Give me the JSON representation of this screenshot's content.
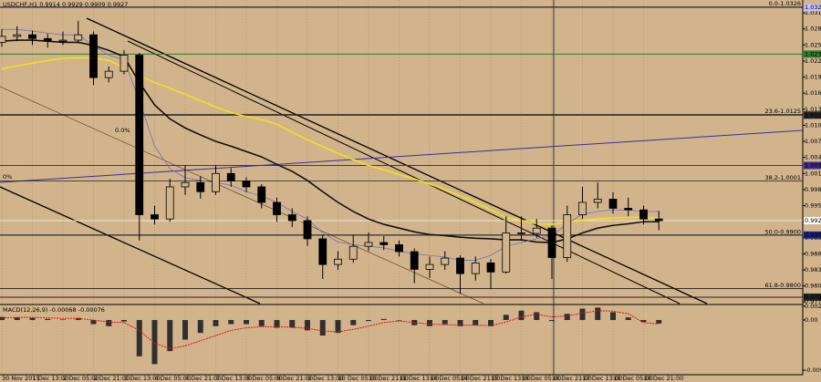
{
  "chart_data": [
    {
      "type": "candlestick",
      "title": "USDCHF,H1 0.9914 0.9929 0.9909 0.9927",
      "categories": [
        "30 Nov 2015",
        null,
        "1 Dec 13:00",
        null,
        "2 Dec 05:00",
        null,
        "2 Dec 21:00",
        null,
        "3 Dec 13:00",
        null,
        "4 Dec 05:00",
        null,
        "4 Dec 21:00",
        null,
        "7 Dec 13:00",
        null,
        "8 Dec 05:00",
        null,
        "8 Dec 21:00",
        null,
        "9 Dec 13:00",
        null,
        "10 Dec 05:00",
        null,
        "10 Dec 21:00",
        null,
        "11 Dec 13:00",
        null,
        "14 Dec 05:00",
        null,
        "14 Dec 21:00",
        null,
        "15 Dec 13:00",
        null,
        "16 Dec 05:00",
        null,
        "16 Dec 21:00",
        null,
        "17 Dec 13:00",
        null,
        "18 Dec 05:00",
        null,
        "18 Dec 21:00",
        null
      ],
      "open": [
        1.026,
        1.0271,
        1.0274,
        1.0267,
        1.0262,
        1.0264,
        1.0274,
        1.0194,
        1.0206,
        1.0236,
        0.9938,
        0.993,
        0.999,
        0.9998,
        0.9981,
        1.0015,
        1.0001,
        0.999,
        0.9961,
        0.9938,
        0.9927,
        0.9893,
        0.9845,
        0.9855,
        0.9879,
        0.9886,
        0.9882,
        0.9869,
        0.9836,
        0.9845,
        0.9857,
        0.9828,
        0.9848,
        0.9831,
        0.9904,
        0.9903,
        0.9913,
        0.9858,
        0.9938,
        0.9961,
        0.9967,
        0.995,
        0.9947,
        0.993
      ],
      "high": [
        1.0285,
        1.029,
        1.0282,
        1.0276,
        1.028,
        1.03,
        1.028,
        1.0215,
        1.0245,
        1.024,
        0.9955,
        1.0005,
        1.003,
        1.001,
        1.003,
        1.0025,
        1.0008,
        0.9995,
        0.997,
        0.995,
        0.9935,
        0.99,
        0.987,
        0.99,
        0.9905,
        0.9898,
        0.989,
        0.9875,
        0.986,
        0.987,
        0.9862,
        0.986,
        0.9855,
        0.9935,
        0.9935,
        0.993,
        0.9918,
        0.9955,
        0.999,
        0.9998,
        0.998,
        0.997,
        0.9955,
        0.9945
      ],
      "low": [
        1.0252,
        1.0262,
        1.0255,
        1.025,
        1.0255,
        1.0258,
        1.018,
        1.0185,
        1.02,
        0.989,
        0.992,
        0.9925,
        0.9975,
        0.9968,
        0.9975,
        0.999,
        0.998,
        0.995,
        0.9925,
        0.9915,
        0.988,
        0.9818,
        0.9835,
        0.9848,
        0.987,
        0.9872,
        0.986,
        0.981,
        0.982,
        0.9835,
        0.979,
        0.9815,
        0.98,
        0.9828,
        0.989,
        0.9895,
        0.9818,
        0.985,
        0.993,
        0.995,
        0.994,
        0.9935,
        0.992,
        0.9909
      ],
      "close": [
        1.0271,
        1.0274,
        1.0267,
        1.0262,
        1.0264,
        1.0274,
        1.0194,
        1.0206,
        1.0236,
        0.9938,
        0.993,
        0.999,
        0.9998,
        0.9981,
        1.0015,
        1.0001,
        0.999,
        0.9961,
        0.9938,
        0.9927,
        0.9893,
        0.9845,
        0.9855,
        0.9879,
        0.9886,
        0.9882,
        0.9869,
        0.9836,
        0.9845,
        0.9857,
        0.9828,
        0.9848,
        0.9831,
        0.9904,
        0.9903,
        0.9913,
        0.9858,
        0.9938,
        0.9961,
        0.9967,
        0.995,
        0.9947,
        0.993,
        0.9927
      ],
      "candle_color": "#000000",
      "series": [
        {
          "color": "#f0e020",
          "values": [
            1.0211,
            1.0216,
            1.0221,
            1.0226,
            1.023,
            1.0231,
            1.0231,
            1.0226,
            1.0213,
            1.0197,
            1.0185,
            1.0174,
            1.0163,
            1.0151,
            1.0139,
            1.0129,
            1.0121,
            1.0116,
            1.0107,
            1.0092,
            1.0078,
            1.0065,
            1.0053,
            1.0041,
            1.003,
            1.0022,
            1.0013,
            1.0005,
            0.9995,
            0.9985,
            0.9973,
            0.9961,
            0.9947,
            0.9933,
            0.9927,
            0.9921,
            0.992,
            0.9923,
            0.9928,
            0.993,
            0.9932,
            0.9933,
            0.9933,
            0.9932
          ]
        },
        {
          "color": "#111111",
          "values": [
            1.0262,
            1.0264,
            1.0264,
            1.0262,
            1.026,
            1.026,
            1.0254,
            1.0245,
            1.0233,
            1.0185,
            1.0143,
            1.0117,
            1.01,
            1.0087,
            1.0075,
            1.0066,
            1.0056,
            1.0046,
            1.0032,
            1.0019,
            1.0002,
            0.9981,
            0.9961,
            0.9944,
            0.993,
            0.992,
            0.9913,
            0.9906,
            0.9901,
            0.9899,
            0.9896,
            0.9894,
            0.9893,
            0.9891,
            0.9891,
            0.9887,
            0.9886,
            0.9893,
            0.9904,
            0.9913,
            0.9918,
            0.9921,
            0.9925,
            0.9925
          ]
        },
        {
          "color": "#7070c0",
          "values": [
            1.0284,
            1.0284,
            1.0281,
            1.0277,
            1.0274,
            1.0274,
            1.0254,
            1.0236,
            1.0228,
            1.0151,
            1.0066,
            1.0024,
            1.0007,
            1.0002,
            0.9998,
            0.9993,
            0.9981,
            0.9973,
            0.9961,
            0.9944,
            0.993,
            0.9904,
            0.9887,
            0.9882,
            0.9879,
            0.9876,
            0.987,
            0.9865,
            0.9862,
            0.9859,
            0.9853,
            0.9853,
            0.9862,
            0.9879,
            0.9886,
            0.9893,
            0.9899,
            0.9921,
            0.9939,
            0.9944,
            0.9947,
            0.9947,
            0.9944,
            0.9944
          ]
        }
      ],
      "ylim": [
        0.9772,
        1.0339
      ],
      "yticks": [
        0.9775,
        0.9805,
        0.9835,
        0.9865,
        0.9895,
        0.9925,
        0.9955,
        0.9985,
        1.0015,
        1.0045,
        1.0075,
        1.0105,
        1.0135,
        1.0165,
        1.0195,
        1.0225,
        1.0255,
        1.0285,
        1.0315
      ],
      "grid": true,
      "levels": [
        {
          "value": 1.0325,
          "label": "1.0325",
          "color": "#5a4a9a",
          "text_color": "#000000",
          "box": "#c8c0ff"
        },
        {
          "value": 1.0238,
          "label": "1.0238",
          "color": "#2e7d32",
          "text_color": "#ffffff",
          "box": "#2e7d32"
        },
        {
          "value": 1.0124,
          "label": "1.0124",
          "color": "#222222",
          "text_color": "#ffffff",
          "box": "#222222"
        },
        {
          "value": 1.003,
          "label": "1.0030",
          "color": "#3c2c8c",
          "text_color": "#ffffff",
          "box": "#3c2c8c"
        },
        {
          "value": 0.9927,
          "label": "0.9927",
          "color": "#efe6d6",
          "text_color": "#000000",
          "box": "#ffffff"
        },
        {
          "value": 0.99,
          "label": "0.9900",
          "color": "#1a237e",
          "text_color": "#ffffff",
          "box": "#1a237e"
        },
        {
          "value": 0.9784,
          "label": "0.9784",
          "color": "#222222",
          "text_color": "#ffffff",
          "box": "#222222"
        }
      ],
      "fib_levels": [
        {
          "value": 1.0326,
          "label": "0.0-1.0326"
        },
        {
          "value": 1.0125,
          "label": "23.6-1.0125"
        },
        {
          "value": 1.0001,
          "label": "38.2-1.0001"
        },
        {
          "value": 0.99,
          "label": "50.0-0.9900"
        },
        {
          "value": 0.98,
          "label": "61.8-0.9800"
        }
      ],
      "annotations": [
        "0%",
        "0.0%"
      ]
    },
    {
      "type": "macd",
      "title": "MACD(12,26,9) -0.00068 -0.00076",
      "histogram": {
        "color": "#303030",
        "values": [
          0.0006,
          0.0005,
          0.0004,
          0.0002,
          0.0001,
          0.0004,
          -0.0008,
          -0.0012,
          -0.0003,
          -0.007,
          -0.0085,
          -0.006,
          -0.0038,
          -0.0025,
          -0.0012,
          -0.0008,
          -0.0008,
          -0.0012,
          -0.0015,
          -0.0015,
          -0.002,
          -0.003,
          -0.0025,
          -0.001,
          -0.0002,
          0.0002,
          0.0,
          -0.001,
          -0.0012,
          -0.0008,
          -0.0012,
          -0.001,
          -0.0012,
          0.001,
          0.0018,
          0.0015,
          -0.0002,
          0.0012,
          0.0022,
          0.0024,
          0.0015,
          0.0005,
          -0.0004,
          -0.00068
        ]
      },
      "signal": {
        "color": "#e01010",
        "values": [
          0.0004,
          0.0005,
          0.0005,
          0.0004,
          0.0003,
          0.0003,
          0.0,
          -0.0004,
          -0.0005,
          -0.002,
          -0.0045,
          -0.0055,
          -0.005,
          -0.004,
          -0.003,
          -0.002,
          -0.0015,
          -0.0013,
          -0.0013,
          -0.0014,
          -0.0016,
          -0.0021,
          -0.0023,
          -0.0018,
          -0.0012,
          -0.0005,
          -0.0002,
          -0.0005,
          -0.0008,
          -0.0009,
          -0.001,
          -0.001,
          -0.0011,
          -0.0004,
          0.0006,
          0.0011,
          0.0006,
          0.0008,
          0.0013,
          0.0018,
          0.0017,
          0.0012,
          -0.0005,
          -0.00076
        ]
      },
      "ylim": [
        -0.01055,
        0.00281
      ],
      "yticks": [
        -0.00967,
        {
          "value": 0,
          "label": "0.00"
        },
        0.00266
      ]
    }
  ]
}
